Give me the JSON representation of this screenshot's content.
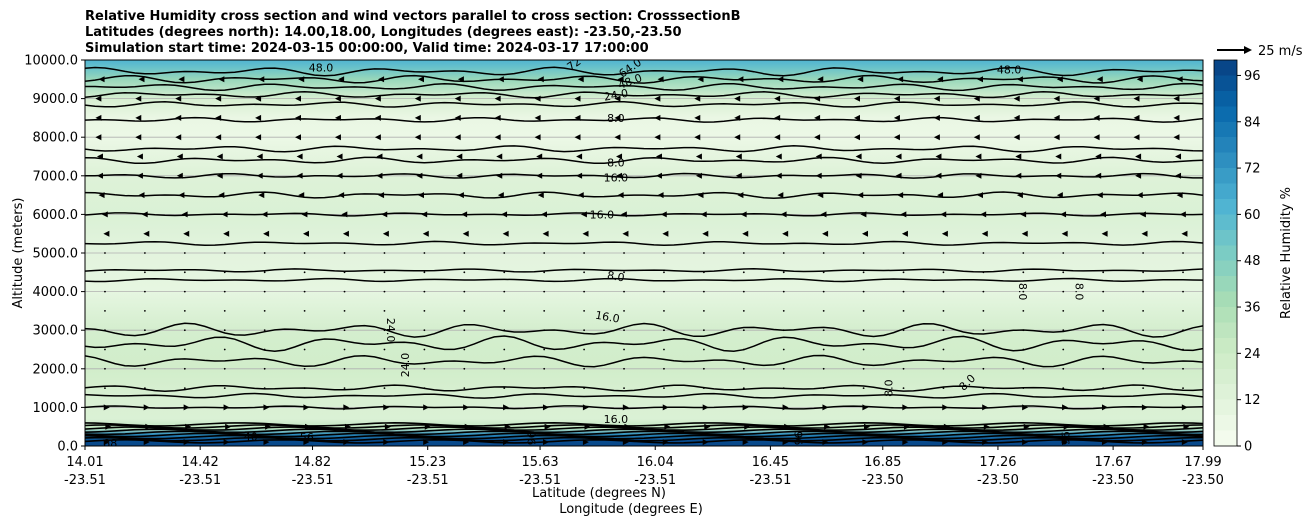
{
  "chart_data": {
    "type": "heatmap",
    "title": [
      "Relative Humidity cross section and wind vectors parallel to cross section: CrosssectionB",
      "Latitudes (degrees north): 14.00,18.00, Longitudes (degrees east): -23.50,-23.50",
      "Simulation start time: 2024-03-15 00:00:00, Valid time: 2024-03-17 17:00:00"
    ],
    "ylabel": "Altitude (meters)",
    "xlabel_lat": "Latitude (degrees N)",
    "xlabel_lon": "Longitude (degrees E)",
    "ylim": [
      0,
      10000
    ],
    "y_ticks": [
      "0.0",
      "1000.0",
      "2000.0",
      "3000.0",
      "4000.0",
      "5000.0",
      "6000.0",
      "7000.0",
      "8000.0",
      "9000.0",
      "10000.0"
    ],
    "y_tick_values": [
      0,
      1000,
      2000,
      3000,
      4000,
      5000,
      6000,
      7000,
      8000,
      9000,
      10000
    ],
    "x_ticks_lat": [
      "14.01",
      "14.42",
      "14.82",
      "15.23",
      "15.63",
      "16.04",
      "16.45",
      "16.85",
      "17.26",
      "17.67",
      "17.99"
    ],
    "x_ticks_lon": [
      "-23.51",
      "-23.51",
      "-23.51",
      "-23.51",
      "-23.51",
      "-23.51",
      "-23.51",
      "-23.50",
      "-23.50",
      "-23.50",
      "-23.50"
    ],
    "x_range_lat": [
      14.01,
      17.99
    ],
    "colorbar": {
      "label": "Relative Humidity %",
      "range": [
        0,
        100
      ],
      "ticks": [
        "0",
        "12",
        "24",
        "36",
        "48",
        "60",
        "72",
        "84",
        "96"
      ],
      "tick_values": [
        0,
        12,
        24,
        36,
        48,
        60,
        72,
        84,
        96
      ],
      "levels": [
        0,
        4,
        8,
        12,
        16,
        20,
        24,
        28,
        32,
        36,
        40,
        44,
        48,
        52,
        56,
        60,
        64,
        68,
        72,
        76,
        80,
        84,
        88,
        92,
        96,
        100
      ],
      "colormap": [
        "#f7fcf0",
        "#e0f3db",
        "#ccebc5",
        "#a8ddb5",
        "#7bccc4",
        "#4eb3d3",
        "#2b8cbe",
        "#0868ac",
        "#084081"
      ]
    },
    "quiver_key": {
      "label": "25 m/s",
      "speed": 25
    },
    "rh_profile": [
      {
        "z": 0,
        "rh": 98
      },
      {
        "z": 150,
        "rh": 96
      },
      {
        "z": 300,
        "rh": 75
      },
      {
        "z": 450,
        "rh": 30
      },
      {
        "z": 700,
        "rh": 16
      },
      {
        "z": 1200,
        "rh": 17
      },
      {
        "z": 2000,
        "rh": 22
      },
      {
        "z": 3000,
        "rh": 20
      },
      {
        "z": 4000,
        "rh": 9
      },
      {
        "z": 5000,
        "rh": 11
      },
      {
        "z": 6000,
        "rh": 16
      },
      {
        "z": 7000,
        "rh": 14
      },
      {
        "z": 8000,
        "rh": 6
      },
      {
        "z": 8500,
        "rh": 7
      },
      {
        "z": 9000,
        "rh": 18
      },
      {
        "z": 9500,
        "rh": 42
      },
      {
        "z": 9800,
        "rh": 55
      },
      {
        "z": 10000,
        "rh": 62
      }
    ],
    "contour_lines": [
      {
        "z": 1000,
        "amp": 40
      },
      {
        "z": 1300,
        "amp": 60
      },
      {
        "z": 1500,
        "amp": 80
      },
      {
        "z": 2200,
        "amp": 150
      },
      {
        "z": 2650,
        "amp": 200
      },
      {
        "z": 3000,
        "amp": 180
      },
      {
        "z": 4300,
        "amp": 40
      },
      {
        "z": 4550,
        "amp": 40
      },
      {
        "z": 5250,
        "amp": 50
      },
      {
        "z": 6000,
        "amp": 40
      },
      {
        "z": 6500,
        "amp": 80
      },
      {
        "z": 7000,
        "amp": 60
      },
      {
        "z": 7400,
        "amp": 80
      },
      {
        "z": 7700,
        "amp": 80
      },
      {
        "z": 8450,
        "amp": 60
      },
      {
        "z": 8850,
        "amp": 70
      },
      {
        "z": 9100,
        "amp": 80
      },
      {
        "z": 9300,
        "amp": 90
      },
      {
        "z": 9500,
        "amp": 100
      },
      {
        "z": 9700,
        "amp": 110
      }
    ],
    "contour_labels": [
      {
        "text": "8.0",
        "lat": 15.9,
        "z": 8500,
        "angle": 0
      },
      {
        "text": "24.0",
        "lat": 15.9,
        "z": 9100,
        "angle": -10
      },
      {
        "text": "48.0",
        "lat": 15.95,
        "z": 9450,
        "angle": -20
      },
      {
        "text": "64.0",
        "lat": 15.95,
        "z": 9800,
        "angle": -35
      },
      {
        "text": "72",
        "lat": 15.75,
        "z": 9900,
        "angle": -35
      },
      {
        "text": "48.0",
        "lat": 14.85,
        "z": 9800,
        "angle": 0
      },
      {
        "text": "48.0",
        "lat": 17.3,
        "z": 9750,
        "angle": 0
      },
      {
        "text": "8.0",
        "lat": 15.9,
        "z": 7350,
        "angle": 0
      },
      {
        "text": "16.0",
        "lat": 15.9,
        "z": 6950,
        "angle": 0
      },
      {
        "text": "16.0",
        "lat": 15.85,
        "z": 6000,
        "angle": 0
      },
      {
        "text": "8.0",
        "lat": 15.9,
        "z": 4400,
        "angle": 10
      },
      {
        "text": "16.0",
        "lat": 15.87,
        "z": 3350,
        "angle": 10
      },
      {
        "text": "8.0",
        "lat": 17.35,
        "z": 4000,
        "angle": 90
      },
      {
        "text": "8.0",
        "lat": 17.55,
        "z": 4000,
        "angle": 90
      },
      {
        "text": "24.0",
        "lat": 15.1,
        "z": 3000,
        "angle": 90
      },
      {
        "text": "24.0",
        "lat": 15.15,
        "z": 2100,
        "angle": -90
      },
      {
        "text": "8.0",
        "lat": 16.87,
        "z": 1500,
        "angle": -90
      },
      {
        "text": "8.0",
        "lat": 17.15,
        "z": 1650,
        "angle": -45
      },
      {
        "text": "16.0",
        "lat": 15.9,
        "z": 700,
        "angle": 0
      },
      {
        "text": "88",
        "lat": 14.1,
        "z": 80,
        "angle": 0
      },
      {
        "text": "40",
        "lat": 14.6,
        "z": 250,
        "angle": 0
      },
      {
        "text": "56",
        "lat": 14.8,
        "z": 230,
        "angle": 0
      },
      {
        "text": "96",
        "lat": 15.6,
        "z": 200,
        "angle": 90
      },
      {
        "text": "96",
        "lat": 16.55,
        "z": 200,
        "angle": 90
      },
      {
        "text": "96",
        "lat": 17.5,
        "z": 200,
        "angle": 90
      }
    ],
    "wind_rows": [
      {
        "z": 100,
        "dir": 1,
        "speed": 3
      },
      {
        "z": 500,
        "dir": 1,
        "speed": 4
      },
      {
        "z": 1000,
        "dir": 1,
        "speed": 3
      },
      {
        "z": 1500,
        "dir": 0,
        "speed": 0
      },
      {
        "z": 2000,
        "dir": 0,
        "speed": 0
      },
      {
        "z": 2500,
        "dir": 0,
        "speed": 0
      },
      {
        "z": 3000,
        "dir": 0,
        "speed": 0
      },
      {
        "z": 3500,
        "dir": 0,
        "speed": 0
      },
      {
        "z": 4000,
        "dir": 0,
        "speed": 0
      },
      {
        "z": 4500,
        "dir": 0,
        "speed": 0
      },
      {
        "z": 5000,
        "dir": 0,
        "speed": 0
      },
      {
        "z": 5500,
        "dir": -1,
        "speed": 1
      },
      {
        "z": 6000,
        "dir": -1,
        "speed": 2
      },
      {
        "z": 6500,
        "dir": -1,
        "speed": 4
      },
      {
        "z": 7000,
        "dir": -1,
        "speed": 5
      },
      {
        "z": 7500,
        "dir": -1,
        "speed": 5
      },
      {
        "z": 8000,
        "dir": -1,
        "speed": 6
      },
      {
        "z": 8500,
        "dir": -1,
        "speed": 6
      },
      {
        "z": 9000,
        "dir": -1,
        "speed": 6
      },
      {
        "z": 9500,
        "dir": -1,
        "speed": 4
      }
    ],
    "wind_columns": 28
  }
}
